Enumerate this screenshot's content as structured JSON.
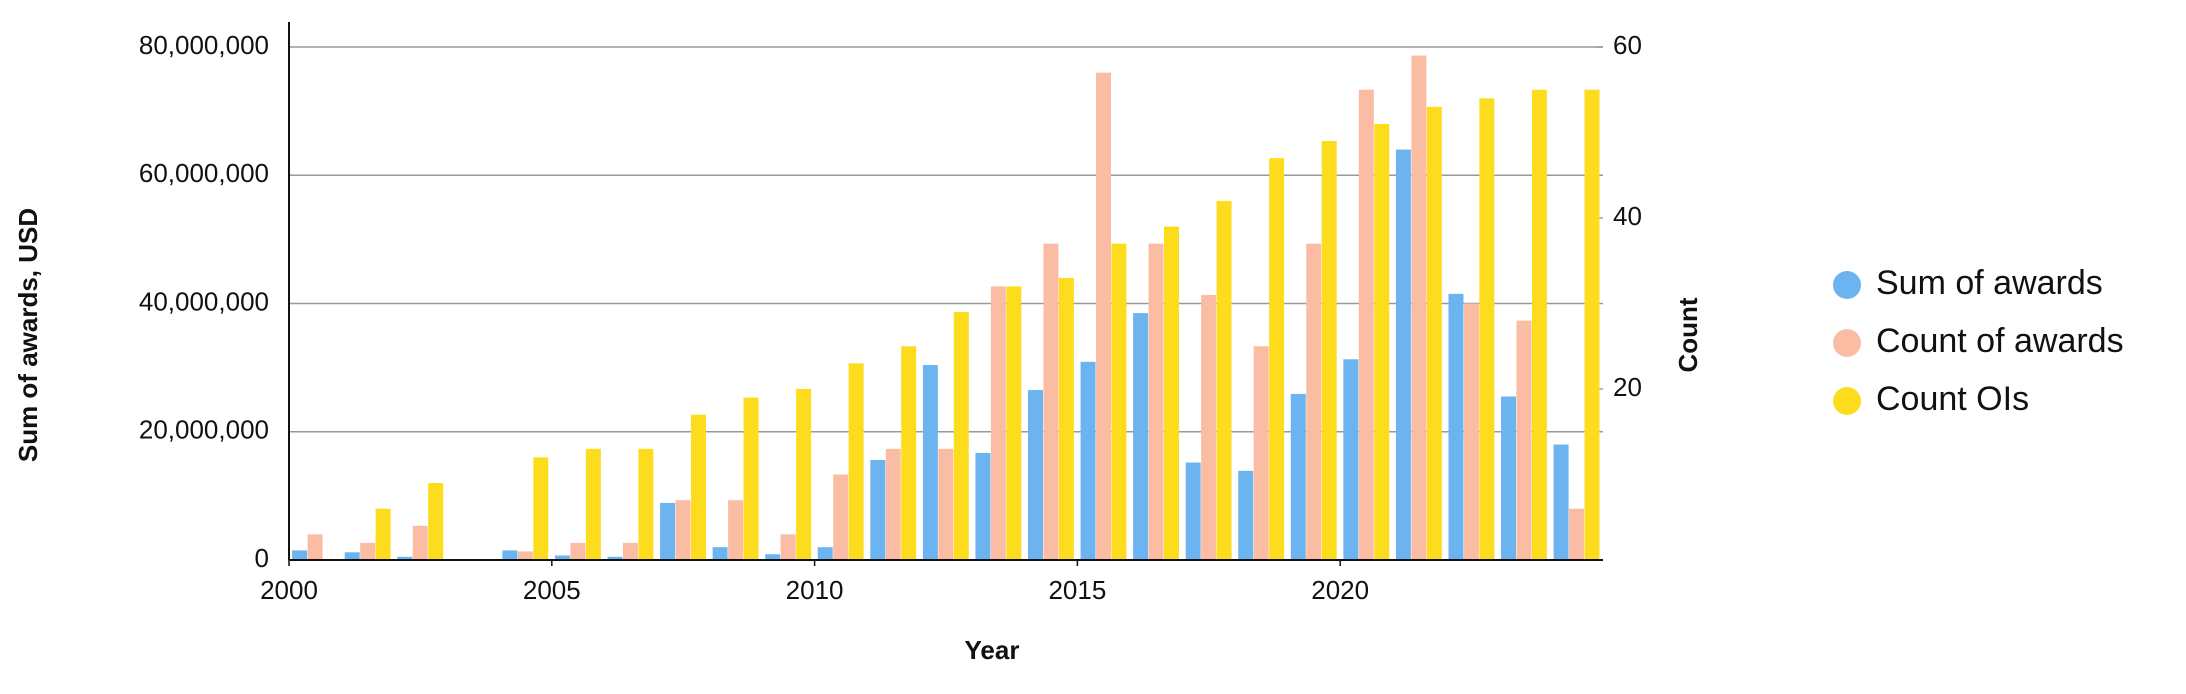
{
  "chart_data": {
    "type": "bar",
    "x_label": "Year",
    "y_label": "Sum of awards, USD",
    "y2_label": "Count",
    "x": [
      2000,
      2001,
      2002,
      2003,
      2004,
      2005,
      2006,
      2007,
      2008,
      2009,
      2010,
      2011,
      2012,
      2013,
      2014,
      2015,
      2016,
      2017,
      2018,
      2019,
      2020,
      2021,
      2022,
      2023,
      2024
    ],
    "series": [
      {
        "name": "Sum of awards",
        "color": "#6cb4f0",
        "values": [
          1500000,
          1200000,
          500000,
          null,
          1500000,
          700000,
          500000,
          8900000,
          2000000,
          900000,
          2000000,
          15600000,
          30400000,
          16700000,
          26500000,
          30900000,
          38500000,
          15200000,
          13900000,
          25900000,
          31300000,
          64000000,
          41500000,
          25500000,
          18000000
        ]
      },
      {
        "name": "Count of awards",
        "color": "#fbbca4",
        "axis": "y2",
        "values": [
          3,
          2,
          4,
          null,
          1,
          2,
          2,
          7,
          7,
          3,
          10,
          13,
          13,
          32,
          37,
          57,
          37,
          31,
          25,
          37,
          55,
          59,
          30,
          28,
          6
        ]
      },
      {
        "name": "Count OIs",
        "color": "#fcdc1c",
        "axis": "y2",
        "values": [
          null,
          6,
          9,
          null,
          12,
          13,
          13,
          17,
          19,
          20,
          23,
          25,
          29,
          32,
          33,
          37,
          39,
          42,
          47,
          49,
          51,
          53,
          54,
          55,
          55
        ]
      }
    ],
    "xlim": [
      2000,
      2025
    ],
    "xticks": [
      2000,
      2005,
      2010,
      2015,
      2020
    ],
    "ylim": [
      0,
      80000000
    ],
    "yticks": [
      0,
      {
        "value": 20000000,
        "label": "20,000,000"
      },
      {
        "value": 40000000,
        "label": "40,000,000"
      },
      {
        "value": 60000000,
        "label": "60,000,000"
      },
      {
        "value": 80000000,
        "label": "80,000,000"
      }
    ],
    "y2lim": [
      0,
      60
    ],
    "y2ticks": [
      20,
      40,
      60
    ],
    "grid": true,
    "legend": "right"
  }
}
